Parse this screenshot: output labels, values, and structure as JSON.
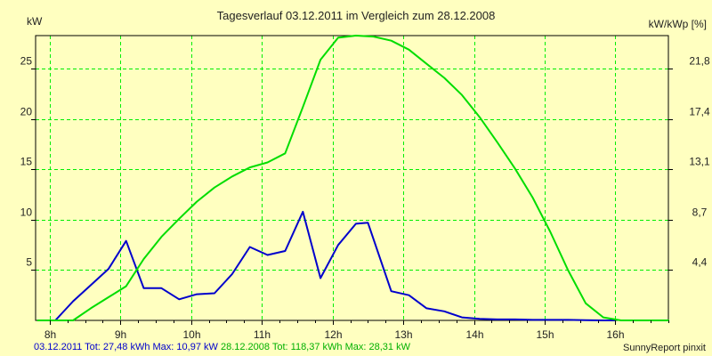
{
  "chart_data": {
    "type": "line",
    "title": "Tagesverlauf 03.12.2011 im Vergleich zum 28.12.2008",
    "ylabel_left": "kW",
    "ylabel_right": "kW/kWp [%]",
    "xlim": [
      7.8,
      16.75
    ],
    "ylim": [
      0,
      28.3
    ],
    "x_ticks": [
      8,
      9,
      10,
      11,
      12,
      13,
      14,
      15,
      16
    ],
    "x_tick_labels": [
      "8h",
      "9h",
      "10h",
      "11h",
      "12h",
      "13h",
      "14h",
      "15h",
      "16h"
    ],
    "y_ticks": [
      5,
      10,
      15,
      20,
      25
    ],
    "y_tick_labels": [
      "5",
      "10",
      "15",
      "20",
      "25"
    ],
    "y2_ticks": [
      4.4,
      8.7,
      13.1,
      17.4,
      21.8
    ],
    "y2_tick_labels": [
      "4,4",
      "8,7",
      "13,1",
      "17,4",
      "21,8"
    ],
    "y2_to_y_factor": 1.147,
    "grid": true,
    "series": [
      {
        "color": "#0000cc",
        "x": [
          7.83,
          8.08,
          8.33,
          8.58,
          8.83,
          9.08,
          9.33,
          9.58,
          9.83,
          10.08,
          10.33,
          10.58,
          10.83,
          11.08,
          11.33,
          11.58,
          11.83,
          12.08,
          12.33,
          12.5,
          12.83,
          13.08,
          13.33,
          13.58,
          13.83,
          14.08,
          14.33,
          14.58,
          14.83,
          15.08,
          15.33,
          15.58,
          15.83,
          16.0
        ],
        "y": [
          0,
          0,
          1.9,
          3.5,
          5.1,
          7.9,
          3.2,
          3.2,
          2.1,
          2.6,
          2.7,
          4.6,
          7.3,
          6.5,
          6.9,
          10.8,
          4.2,
          7.5,
          9.6,
          9.7,
          2.9,
          2.5,
          1.2,
          0.9,
          0.3,
          0.15,
          0.1,
          0.1,
          0.05,
          0.05,
          0.05,
          0.02,
          0,
          0
        ]
      },
      {
        "color": "#00dd00",
        "x": [
          7.83,
          8.0,
          8.33,
          8.58,
          8.83,
          9.08,
          9.33,
          9.58,
          9.83,
          10.08,
          10.33,
          10.58,
          10.83,
          11.08,
          11.33,
          11.58,
          11.83,
          12.08,
          12.33,
          12.58,
          12.83,
          13.08,
          13.33,
          13.58,
          13.83,
          14.08,
          14.33,
          14.58,
          14.83,
          15.08,
          15.33,
          15.58,
          15.83,
          16.08,
          16.33,
          16.75
        ],
        "y": [
          0,
          0,
          0,
          1.2,
          2.3,
          3.4,
          6.1,
          8.3,
          10.1,
          11.8,
          13.2,
          14.3,
          15.2,
          15.7,
          16.6,
          21.2,
          25.9,
          28.1,
          28.3,
          28.2,
          27.8,
          26.9,
          25.5,
          24.1,
          22.4,
          20.2,
          17.7,
          15.1,
          12.2,
          8.8,
          5.0,
          1.7,
          0.3,
          0,
          0,
          0
        ]
      }
    ]
  },
  "footer": {
    "blue_text": "03.12.2011 Tot: 27,48 kWh Max: 10,97 kW",
    "green_text": "28.12.2008 Tot: 118,37 kWh Max: 28,31 kW",
    "right_text": "SunnyReport pinxit",
    "blue_color": "#0000cc",
    "green_color": "#00b000"
  }
}
